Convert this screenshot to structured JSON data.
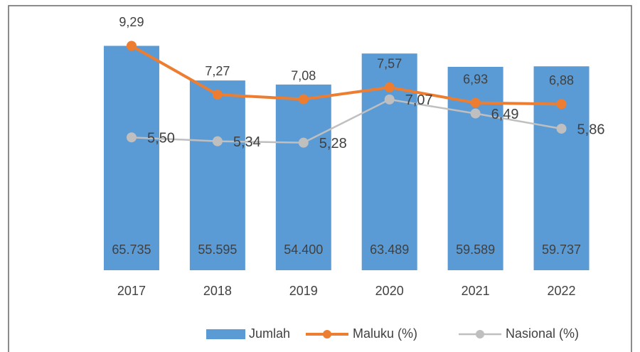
{
  "chart_data": {
    "type": "bar_line",
    "categories": [
      "2017",
      "2018",
      "2019",
      "2020",
      "2021",
      "2022"
    ],
    "ylim": [
      0,
      75000
    ],
    "y2lim": [
      0,
      10.6
    ],
    "legend": "bottom",
    "series": [
      {
        "name": "Jumlah",
        "type": "bar",
        "color": "#5b9bd5",
        "values": [
          65735,
          55595,
          54400,
          63489,
          59589,
          59737
        ],
        "value_labels": [
          "65.735",
          "55.595",
          "54.400",
          "63.489",
          "59.589",
          "59.737"
        ]
      },
      {
        "name": "Maluku (%)",
        "type": "line",
        "axis": "y2",
        "color": "#ed7d31",
        "values": [
          9.29,
          7.27,
          7.08,
          7.57,
          6.93,
          6.88
        ],
        "value_labels": [
          "9,29",
          "7,27",
          "7,08",
          "7,57",
          "6,93",
          "6,88"
        ]
      },
      {
        "name": "Nasional (%)",
        "type": "line",
        "axis": "y2",
        "color": "#bfbfbf",
        "values": [
          5.5,
          5.34,
          5.28,
          7.07,
          6.49,
          5.86
        ],
        "value_labels": [
          "5,50",
          "5,34",
          "5,28",
          "7,07",
          "6,49",
          "5,86"
        ]
      }
    ]
  }
}
